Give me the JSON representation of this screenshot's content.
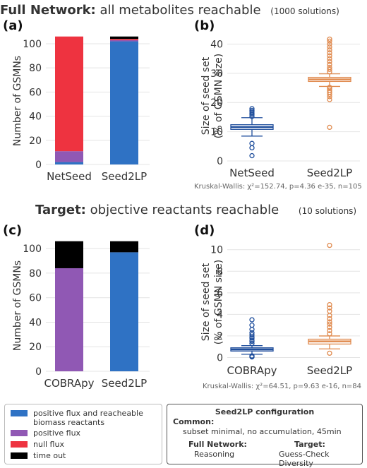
{
  "rows": [
    {
      "title_bold": "Full Network:",
      "title_rest": "all metabolites reachable",
      "count": "(1000 solutions)"
    },
    {
      "title_bold": "Target:",
      "title_rest": "objective reactants reachable",
      "count": "(10 solutions)"
    }
  ],
  "colors": {
    "positive_flux_biomass": "#2f72c4",
    "positive_flux": "#9058b4",
    "null_flux": "#ee3340",
    "time_out": "#000000",
    "netseed_cobrapy_box": "#1f4e9c",
    "seed2lp_box": "#e08a4e"
  },
  "chart_data": [
    {
      "panel": "(a)",
      "type": "bar",
      "stacked": true,
      "ylabel": "Number of GSMNs",
      "ylim": [
        0,
        107
      ],
      "yticks": [
        0,
        20,
        40,
        60,
        80,
        100
      ],
      "categories": [
        "NetSeed",
        "Seed2LP"
      ],
      "series": [
        {
          "name": "positive flux and reacheable biomass reactants",
          "color": "#2f72c4",
          "values": [
            2,
            102
          ]
        },
        {
          "name": "positive flux",
          "color": "#9058b4",
          "values": [
            9,
            1
          ]
        },
        {
          "name": "null flux",
          "color": "#ee3340",
          "values": [
            95,
            1
          ]
        },
        {
          "name": "time out",
          "color": "#000000",
          "values": [
            0,
            2
          ]
        }
      ],
      "grid": true
    },
    {
      "panel": "(b)",
      "type": "box",
      "ylabel": [
        "Size of seed set",
        "(% of GSMN size)"
      ],
      "ylim": [
        0,
        43
      ],
      "yticks": [
        0,
        10,
        20,
        30,
        40
      ],
      "categories": [
        "NetSeed",
        "Seed2LP"
      ],
      "boxes": [
        {
          "color": "#1f4e9c",
          "whisker_low": 8.5,
          "q1": 10.8,
          "median": 11.6,
          "q3": 12.4,
          "whisker_high": 14.8,
          "outliers": [
            1.8,
            4.5,
            6.0,
            15.2,
            15.8,
            16.3,
            16.8,
            17.3,
            17.9
          ]
        },
        {
          "color": "#e08a4e",
          "whisker_low": 25.5,
          "q1": 27.2,
          "median": 27.9,
          "q3": 28.6,
          "whisker_high": 29.8,
          "outliers": [
            11.5,
            21.0,
            22.0,
            22.8,
            23.5,
            24.2,
            24.8,
            25.2,
            30.5,
            31.3,
            32.0,
            33.0,
            34.0,
            35.0,
            36.0,
            37.0,
            38.0,
            39.0,
            40.0,
            41.0,
            41.7
          ]
        }
      ],
      "stat_note": "Kruskal-Wallis: χ²=152.74, p=4.36 e-35, n=105",
      "grid": true
    },
    {
      "panel": "(c)",
      "type": "bar",
      "stacked": true,
      "ylabel": "Number of GSMNs",
      "ylim": [
        0,
        107
      ],
      "yticks": [
        0,
        20,
        40,
        60,
        80,
        100
      ],
      "categories": [
        "COBRApy",
        "Seed2LP"
      ],
      "series": [
        {
          "name": "positive flux and reacheable biomass reactants",
          "color": "#2f72c4",
          "values": [
            0,
            97
          ]
        },
        {
          "name": "positive flux",
          "color": "#9058b4",
          "values": [
            84,
            0
          ]
        },
        {
          "name": "null flux",
          "color": "#ee3340",
          "values": [
            0,
            0
          ]
        },
        {
          "name": "time out",
          "color": "#000000",
          "values": [
            22,
            9
          ]
        }
      ],
      "grid": true
    },
    {
      "panel": "(d)",
      "type": "box",
      "ylabel": [
        "Size of seed set",
        "(% of GSMN size)"
      ],
      "ylim": [
        -0.1,
        10.9
      ],
      "yticks": [
        0,
        2,
        4,
        6,
        8,
        10
      ],
      "categories": [
        "COBRApy",
        "Seed2LP"
      ],
      "boxes": [
        {
          "color": "#1f4e9c",
          "whisker_low": 0.3,
          "q1": 0.6,
          "median": 0.75,
          "q3": 0.9,
          "whisker_high": 1.1,
          "outliers": [
            0.05,
            0.1,
            0.15,
            1.3,
            1.5,
            1.6,
            1.8,
            1.9,
            2.1,
            2.3,
            2.6,
            3.0,
            3.5
          ]
        },
        {
          "color": "#e08a4e",
          "whisker_low": 0.8,
          "q1": 1.25,
          "median": 1.5,
          "q3": 1.7,
          "whisker_high": 2.0,
          "outliers": [
            0.4,
            2.2,
            2.5,
            2.8,
            3.1,
            3.3,
            3.6,
            3.9,
            4.3,
            4.6,
            4.9,
            10.4
          ]
        }
      ],
      "stat_note": "Kruskal-Wallis: χ²=64.51, p=9.63 e-16, n=84",
      "grid": true
    }
  ],
  "legend": [
    {
      "label": "positive flux and reacheable biomass reactants",
      "color": "#2f72c4"
    },
    {
      "label": "positive flux",
      "color": "#9058b4"
    },
    {
      "label": "null flux",
      "color": "#ee3340"
    },
    {
      "label": "time out",
      "color": "#000000"
    }
  ],
  "config": {
    "title": "Seed2LP configuration",
    "common_label": "Common:",
    "common_value": "subset minimal, no accumulation, 45min",
    "full_network_label": "Full Network:",
    "full_network_value": "Reasoning",
    "target_label": "Target:",
    "target_value": "Guess-Check Diversity"
  }
}
